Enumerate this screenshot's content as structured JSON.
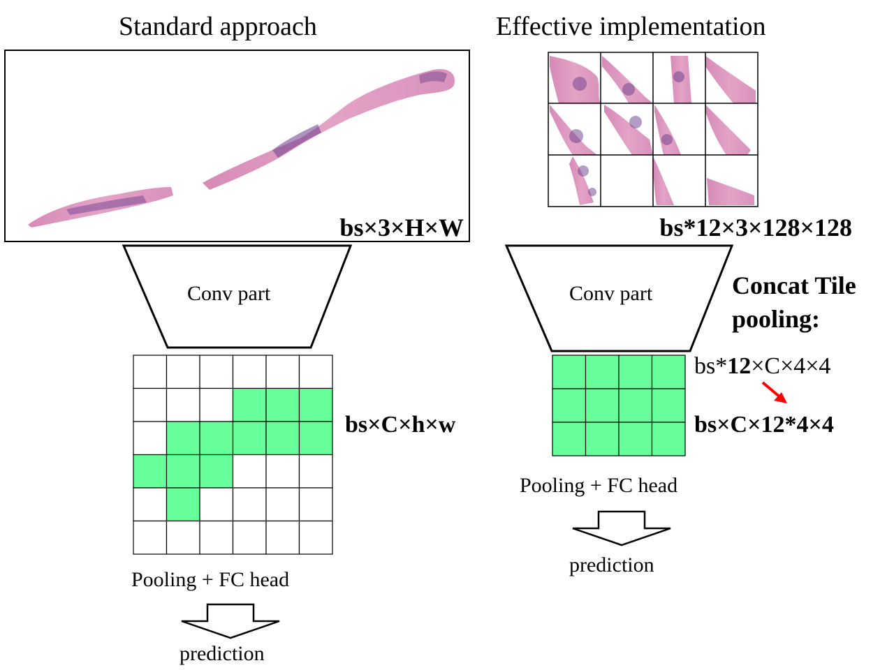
{
  "left": {
    "title": "Standard approach",
    "input_label": "bs×3×H×W",
    "conv_label": "Conv part",
    "feature_label": "bs×C×h×w",
    "head_label": "Pooling + FC head",
    "output_label": "prediction",
    "grid": {
      "rows": 6,
      "cols": 6,
      "filled": [
        [
          1,
          3
        ],
        [
          1,
          4
        ],
        [
          1,
          5
        ],
        [
          2,
          1
        ],
        [
          2,
          2
        ],
        [
          2,
          3
        ],
        [
          2,
          4
        ],
        [
          2,
          5
        ],
        [
          3,
          0
        ],
        [
          3,
          1
        ],
        [
          3,
          2
        ],
        [
          4,
          1
        ]
      ]
    }
  },
  "right": {
    "title": "Effective implementation",
    "tiles_label": "bs*12×3×128×128",
    "conv_label": "Conv part",
    "concat_title_1": "Concat Tile",
    "concat_title_2": "pooling:",
    "shape_before_prefix": "bs*",
    "shape_before_bold": "12",
    "shape_before_suffix": "×C×4×4",
    "shape_after": "bs×C×12*4×4",
    "head_label": "Pooling + FC head",
    "output_label": "prediction",
    "tile_grid": {
      "rows": 3,
      "cols": 4
    },
    "feature_grid": {
      "rows": 3,
      "cols": 4
    }
  },
  "colors": {
    "cell_fill": "#66ff99",
    "tissue_pink": "#d989b8",
    "tissue_purple": "#6a3d8a",
    "arrow_red": "#ff0000"
  }
}
